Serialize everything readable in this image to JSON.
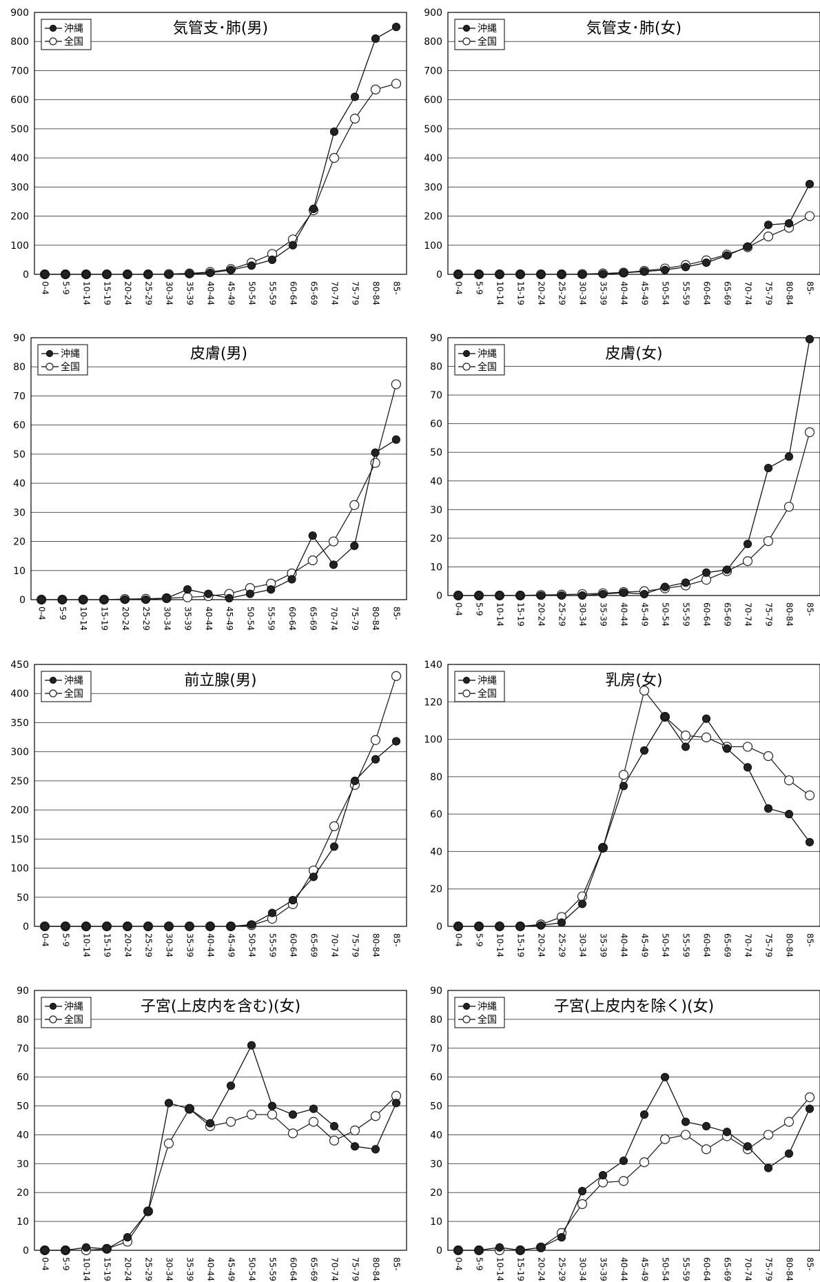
{
  "chart_data": [
    {
      "type": "line",
      "title": "気管支･肺(男)",
      "categories": [
        "0-4",
        "5-9",
        "10-14",
        "15-19",
        "20-24",
        "25-29",
        "30-34",
        "35-39",
        "40-44",
        "45-49",
        "50-54",
        "55-59",
        "60-64",
        "65-69",
        "70-74",
        "75-79",
        "80-84",
        "85-"
      ],
      "ylim": [
        0,
        900
      ],
      "yticks": [
        0,
        100,
        200,
        300,
        400,
        500,
        600,
        700,
        800,
        900
      ],
      "grid": true,
      "legend_position": "top-left",
      "series": [
        {
          "name": "沖縄",
          "marker": "filled",
          "values": [
            0,
            0,
            0,
            0,
            0,
            0,
            0,
            2,
            5,
            15,
            30,
            50,
            100,
            225,
            490,
            610,
            810,
            850
          ]
        },
        {
          "name": "全国",
          "marker": "open",
          "values": [
            0,
            0,
            0,
            0,
            0,
            0,
            1,
            3,
            8,
            18,
            40,
            70,
            120,
            220,
            400,
            535,
            635,
            655
          ]
        }
      ]
    },
    {
      "type": "line",
      "title": "気管支･肺(女)",
      "categories": [
        "0-4",
        "5-9",
        "10-14",
        "15-19",
        "20-24",
        "25-29",
        "30-34",
        "35-39",
        "40-44",
        "45-49",
        "50-54",
        "55-59",
        "60-64",
        "65-69",
        "70-74",
        "75-79",
        "80-84",
        "85-"
      ],
      "ylim": [
        0,
        900
      ],
      "yticks": [
        0,
        100,
        200,
        300,
        400,
        500,
        600,
        700,
        800,
        900
      ],
      "grid": true,
      "legend_position": "top-left",
      "series": [
        {
          "name": "沖縄",
          "marker": "filled",
          "values": [
            0,
            0,
            0,
            0,
            0,
            0,
            0,
            1,
            5,
            10,
            15,
            25,
            40,
            65,
            95,
            170,
            175,
            310
          ]
        },
        {
          "name": "全国",
          "marker": "open",
          "values": [
            0,
            0,
            0,
            0,
            0,
            0,
            1,
            3,
            6,
            12,
            20,
            32,
            48,
            68,
            93,
            130,
            160,
            200
          ]
        }
      ]
    },
    {
      "type": "line",
      "title": "皮膚(男)",
      "categories": [
        "0-4",
        "5-9",
        "10-14",
        "15-19",
        "20-24",
        "25-29",
        "30-34",
        "35-39",
        "40-44",
        "45-49",
        "50-54",
        "55-59",
        "60-64",
        "65-69",
        "70-74",
        "75-79",
        "80-84",
        "85-"
      ],
      "ylim": [
        0,
        90
      ],
      "yticks": [
        0,
        10,
        20,
        30,
        40,
        50,
        60,
        70,
        80,
        90
      ],
      "grid": true,
      "legend_position": "top-left",
      "series": [
        {
          "name": "沖縄",
          "marker": "filled",
          "values": [
            0,
            0,
            0,
            0,
            0,
            0,
            0.5,
            3.5,
            2,
            0.5,
            2,
            3.5,
            7,
            22,
            12,
            18.5,
            50.5,
            55
          ]
        },
        {
          "name": "全国",
          "marker": "open",
          "values": [
            0,
            0,
            0,
            0,
            0.2,
            0.3,
            0.5,
            0.8,
            1.2,
            2,
            4,
            5.5,
            9,
            13.5,
            20,
            32.5,
            47,
            74
          ]
        }
      ]
    },
    {
      "type": "line",
      "title": "皮膚(女)",
      "categories": [
        "0-4",
        "5-9",
        "10-14",
        "15-19",
        "20-24",
        "25-29",
        "30-34",
        "35-39",
        "40-44",
        "45-49",
        "50-54",
        "55-59",
        "60-64",
        "65-69",
        "70-74",
        "75-79",
        "80-84",
        "85-"
      ],
      "ylim": [
        0,
        90
      ],
      "yticks": [
        0,
        10,
        20,
        30,
        40,
        50,
        60,
        70,
        80,
        90
      ],
      "grid": true,
      "legend_position": "top-left",
      "series": [
        {
          "name": "沖縄",
          "marker": "filled",
          "values": [
            0,
            0,
            0,
            0,
            0,
            0,
            0,
            0.5,
            1,
            0.5,
            3,
            4.5,
            8,
            9,
            18,
            44.5,
            48.5,
            89.5
          ]
        },
        {
          "name": "全国",
          "marker": "open",
          "values": [
            0,
            0,
            0,
            0,
            0.2,
            0.3,
            0.5,
            0.8,
            1.2,
            1.5,
            2.5,
            3.5,
            5.5,
            8.5,
            12,
            19,
            31,
            57
          ]
        }
      ]
    },
    {
      "type": "line",
      "title": "前立腺(男)",
      "categories": [
        "0-4",
        "5-9",
        "10-14",
        "15-19",
        "20-24",
        "25-29",
        "30-34",
        "35-39",
        "40-44",
        "45-49",
        "50-54",
        "55-59",
        "60-64",
        "65-69",
        "70-74",
        "75-79",
        "80-84",
        "85-"
      ],
      "ylim": [
        0,
        450
      ],
      "yticks": [
        0,
        50,
        100,
        150,
        200,
        250,
        300,
        350,
        400,
        450
      ],
      "grid": true,
      "legend_position": "top-left",
      "series": [
        {
          "name": "沖縄",
          "marker": "filled",
          "values": [
            0,
            0,
            0,
            0,
            0,
            0,
            0,
            0,
            0,
            0,
            3,
            23,
            45,
            85,
            137,
            250,
            287,
            318
          ]
        },
        {
          "name": "全国",
          "marker": "open",
          "values": [
            0,
            0,
            0,
            0,
            0,
            0,
            0,
            0,
            0,
            0,
            2,
            13,
            38,
            96,
            172,
            243,
            320,
            430
          ]
        }
      ]
    },
    {
      "type": "line",
      "title": "乳房(女)",
      "categories": [
        "0-4",
        "5-9",
        "10-14",
        "15-19",
        "20-24",
        "25-29",
        "30-34",
        "35-39",
        "40-44",
        "45-49",
        "50-54",
        "55-59",
        "60-64",
        "65-69",
        "70-74",
        "75-79",
        "80-84",
        "85-"
      ],
      "ylim": [
        0,
        140
      ],
      "yticks": [
        0,
        20,
        40,
        60,
        80,
        100,
        120,
        140
      ],
      "grid": true,
      "legend_position": "top-left",
      "series": [
        {
          "name": "沖縄",
          "marker": "filled",
          "values": [
            0,
            0,
            0,
            0,
            0.5,
            2,
            12,
            42,
            75,
            94,
            112,
            96,
            111,
            95,
            85,
            63,
            60,
            45
          ]
        },
        {
          "name": "全国",
          "marker": "open",
          "values": [
            0,
            0,
            0,
            0,
            1,
            5,
            16,
            42,
            81,
            126,
            112,
            102,
            101,
            96,
            96,
            91,
            78,
            70
          ]
        }
      ]
    },
    {
      "type": "line",
      "title": "子宮(上皮内を含む)(女)",
      "categories": [
        "0-4",
        "5-9",
        "10-14",
        "15-19",
        "20-24",
        "25-29",
        "30-34",
        "35-39",
        "40-44",
        "45-49",
        "50-54",
        "55-59",
        "60-64",
        "65-69",
        "70-74",
        "75-79",
        "80-84",
        "85-"
      ],
      "ylim": [
        0,
        90
      ],
      "yticks": [
        0,
        10,
        20,
        30,
        40,
        50,
        60,
        70,
        80,
        90
      ],
      "grid": true,
      "legend_position": "top-left",
      "series": [
        {
          "name": "沖縄",
          "marker": "filled",
          "values": [
            0,
            0,
            1,
            0.5,
            4.5,
            13.5,
            51,
            49,
            44,
            57,
            71,
            50,
            47,
            49,
            43,
            36,
            35,
            51
          ]
        },
        {
          "name": "全国",
          "marker": "open",
          "values": [
            0,
            0,
            0,
            0.5,
            3,
            13.5,
            37,
            49,
            43,
            44.5,
            47,
            47,
            40.5,
            44.5,
            38,
            41.5,
            46.5,
            53.5
          ]
        }
      ]
    },
    {
      "type": "line",
      "title": "子宮(上皮内を除く)(女)",
      "categories": [
        "0-4",
        "5-9",
        "10-14",
        "15-19",
        "20-24",
        "25-29",
        "30-34",
        "35-39",
        "40-44",
        "45-49",
        "50-54",
        "55-59",
        "60-64",
        "65-69",
        "70-74",
        "75-79",
        "80-84",
        "85-"
      ],
      "ylim": [
        0,
        90
      ],
      "yticks": [
        0,
        10,
        20,
        30,
        40,
        50,
        60,
        70,
        80,
        90
      ],
      "grid": true,
      "legend_position": "top-left",
      "series": [
        {
          "name": "沖縄",
          "marker": "filled",
          "values": [
            0,
            0,
            1,
            0,
            1,
            4.5,
            20.5,
            26,
            31,
            47,
            60,
            44.5,
            43,
            41,
            36,
            28.5,
            33.5,
            49
          ]
        },
        {
          "name": "全国",
          "marker": "open",
          "values": [
            0,
            0,
            0,
            0,
            1,
            6,
            16,
            23.5,
            24,
            30.5,
            38.5,
            40,
            35,
            39.5,
            35,
            40,
            44.5,
            53
          ]
        }
      ]
    }
  ]
}
